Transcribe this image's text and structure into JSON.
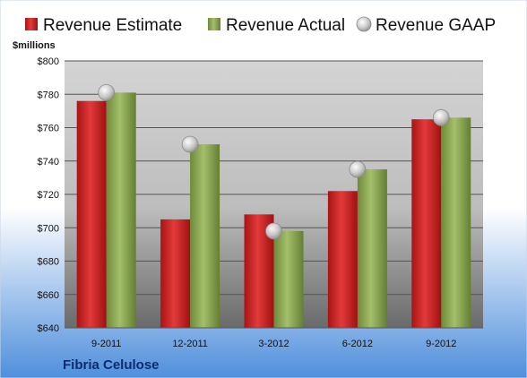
{
  "chart_data": {
    "type": "bar",
    "company": "Fibria Celulose",
    "ylabel": "$millions",
    "categories": [
      "9-2011",
      "12-2011",
      "3-2012",
      "6-2012",
      "9-2012"
    ],
    "y_ticks": [
      "$640",
      "$660",
      "$680",
      "$700",
      "$720",
      "$740",
      "$760",
      "$780",
      "$800"
    ],
    "ylim": [
      640,
      800
    ],
    "grid": true,
    "legend_position": "top",
    "series": [
      {
        "name": "Revenue Estimate",
        "kind": "bar",
        "color": "#cc2a2a",
        "values": [
          776,
          705,
          708,
          722,
          765
        ]
      },
      {
        "name": "Revenue Actual",
        "kind": "bar",
        "color": "#8aa452",
        "values": [
          781,
          750,
          698,
          735,
          766
        ]
      },
      {
        "name": "Revenue GAAP",
        "kind": "marker",
        "color": "#b8b8b8",
        "values": [
          781,
          750,
          698,
          735,
          766
        ]
      }
    ]
  }
}
